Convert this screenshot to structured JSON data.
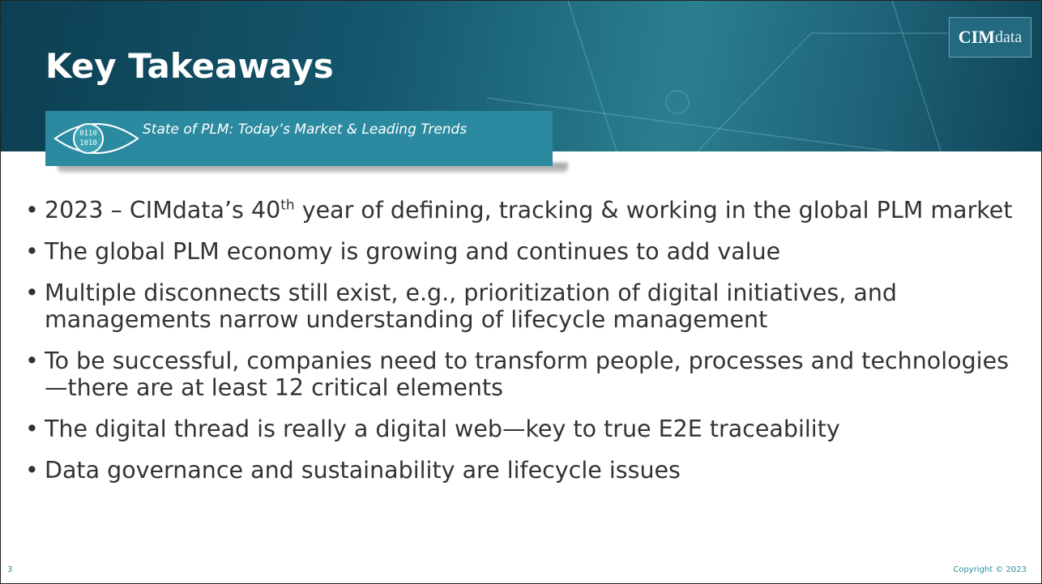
{
  "logo": {
    "part1": "CIM",
    "part2": "data"
  },
  "header": {
    "title": "Key Takeaways",
    "subtitle": "State of PLM: Today’s Market & Leading Trends"
  },
  "bullets": [
    {
      "before": "2023 – CIMdata’s 40",
      "sup": "th",
      "after": " year of defining, tracking & working in the global PLM market"
    },
    {
      "text": "The global PLM economy is growing and continues to add value"
    },
    {
      "text": "Multiple disconnects still exist, e.g., prioritization of digital initiatives, and managements narrow understanding of lifecycle management"
    },
    {
      "text": "To be successful, companies need to transform people, processes and technologies—there are at least 12 critical elements"
    },
    {
      "text": "The digital thread is really a digital web—key to true E2E traceability"
    },
    {
      "text": "Data governance and sustainability are lifecycle issues"
    }
  ],
  "footer": {
    "slide_number": "3",
    "copyright": "Copyright © 2023"
  }
}
